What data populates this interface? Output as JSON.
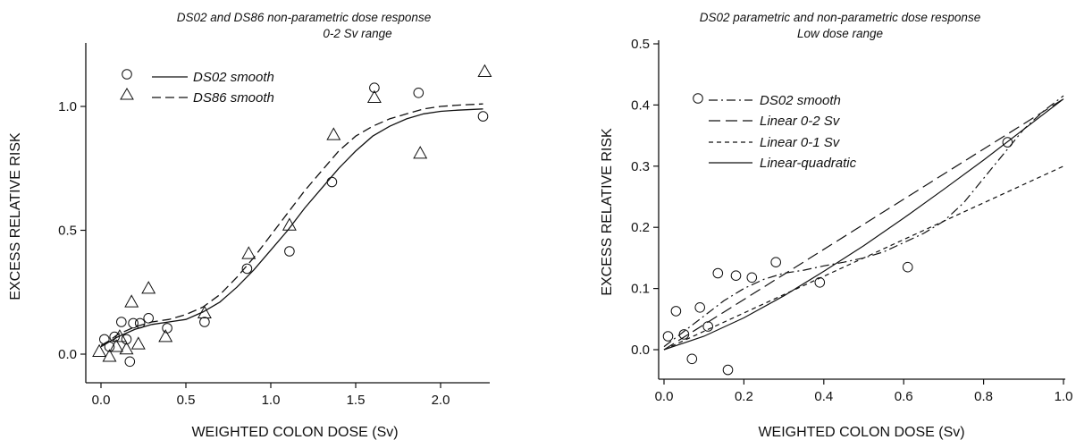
{
  "chart_data": [
    {
      "type": "scatter",
      "title": "DS02 and DS86 non-parametric dose response",
      "subtitle": "0-2 Sv range",
      "xlabel": "WEIGHTED COLON DOSE (Sv)",
      "ylabel": "EXCESS RELATIVE RISK",
      "xlim": [
        -0.1,
        2.3
      ],
      "ylim": [
        -0.1,
        1.25
      ],
      "x_ticks": [
        0.0,
        0.5,
        1.0,
        1.5,
        2.0
      ],
      "x_tick_labels": [
        "0.0",
        "0.5",
        "1.0",
        "1.5",
        "2.0"
      ],
      "y_ticks": [
        0.0,
        0.5,
        1.0
      ],
      "y_tick_labels": [
        "0.0",
        "0.5",
        "1.0"
      ],
      "grid": false,
      "legend_position": "top-left",
      "series": [
        {
          "name": "DS02 smooth",
          "marker": "circle",
          "line_style": "solid",
          "points": [
            [
              0.02,
              0.06
            ],
            [
              0.05,
              0.03
            ],
            [
              0.08,
              0.07
            ],
            [
              0.12,
              0.13
            ],
            [
              0.15,
              0.06
            ],
            [
              0.17,
              -0.03
            ],
            [
              0.19,
              0.125
            ],
            [
              0.23,
              0.125
            ],
            [
              0.28,
              0.145
            ],
            [
              0.39,
              0.105
            ],
            [
              0.61,
              0.13
            ],
            [
              0.86,
              0.345
            ],
            [
              1.11,
              0.415
            ],
            [
              1.36,
              0.695
            ],
            [
              1.61,
              1.075
            ],
            [
              1.87,
              1.055
            ],
            [
              2.25,
              0.96
            ]
          ],
          "smooth": [
            [
              0.0,
              0.03
            ],
            [
              0.05,
              0.05
            ],
            [
              0.1,
              0.07
            ],
            [
              0.2,
              0.1
            ],
            [
              0.3,
              0.12
            ],
            [
              0.4,
              0.13
            ],
            [
              0.5,
              0.14
            ],
            [
              0.6,
              0.17
            ],
            [
              0.7,
              0.21
            ],
            [
              0.8,
              0.27
            ],
            [
              0.9,
              0.34
            ],
            [
              1.0,
              0.42
            ],
            [
              1.1,
              0.5
            ],
            [
              1.2,
              0.59
            ],
            [
              1.3,
              0.67
            ],
            [
              1.4,
              0.75
            ],
            [
              1.5,
              0.82
            ],
            [
              1.6,
              0.88
            ],
            [
              1.7,
              0.92
            ],
            [
              1.8,
              0.95
            ],
            [
              1.9,
              0.97
            ],
            [
              2.0,
              0.98
            ],
            [
              2.1,
              0.985
            ],
            [
              2.25,
              0.99
            ]
          ]
        },
        {
          "name": "DS86 smooth",
          "marker": "triangle",
          "line_style": "dashed",
          "points": [
            [
              -0.01,
              0.01
            ],
            [
              0.05,
              -0.01
            ],
            [
              0.09,
              0.03
            ],
            [
              0.11,
              0.07
            ],
            [
              0.15,
              0.02
            ],
            [
              0.18,
              0.21
            ],
            [
              0.22,
              0.04
            ],
            [
              0.28,
              0.265
            ],
            [
              0.38,
              0.07
            ],
            [
              0.61,
              0.165
            ],
            [
              0.87,
              0.405
            ],
            [
              1.11,
              0.52
            ],
            [
              1.37,
              0.885
            ],
            [
              1.61,
              1.035
            ],
            [
              1.88,
              0.81
            ],
            [
              2.26,
              1.14
            ]
          ],
          "smooth": [
            [
              0.0,
              0.035
            ],
            [
              0.05,
              0.055
            ],
            [
              0.1,
              0.08
            ],
            [
              0.2,
              0.11
            ],
            [
              0.3,
              0.13
            ],
            [
              0.4,
              0.14
            ],
            [
              0.5,
              0.16
            ],
            [
              0.6,
              0.19
            ],
            [
              0.7,
              0.24
            ],
            [
              0.8,
              0.31
            ],
            [
              0.9,
              0.39
            ],
            [
              1.0,
              0.48
            ],
            [
              1.1,
              0.57
            ],
            [
              1.2,
              0.66
            ],
            [
              1.3,
              0.74
            ],
            [
              1.4,
              0.82
            ],
            [
              1.5,
              0.88
            ],
            [
              1.6,
              0.92
            ],
            [
              1.7,
              0.95
            ],
            [
              1.8,
              0.97
            ],
            [
              1.9,
              0.99
            ],
            [
              2.0,
              1.0
            ],
            [
              2.1,
              1.005
            ],
            [
              2.25,
              1.01
            ]
          ]
        }
      ]
    },
    {
      "type": "scatter",
      "title": "DS02 parametric and  non-parametric dose response",
      "subtitle": "Low dose range",
      "xlabel": "WEIGHTED COLON DOSE (Sv)",
      "ylabel": "EXCESS RELATIVE RISK",
      "xlim": [
        -0.01,
        1.0
      ],
      "ylim": [
        -0.05,
        0.5
      ],
      "x_ticks": [
        0.0,
        0.2,
        0.4,
        0.6,
        0.8,
        1.0
      ],
      "x_tick_labels": [
        "0.0",
        "0.2",
        "0.4",
        "0.6",
        "0.8",
        "1.0"
      ],
      "y_ticks": [
        0.0,
        0.1,
        0.2,
        0.3,
        0.4,
        0.5
      ],
      "y_tick_labels": [
        "0.0",
        "0.1",
        "0.2",
        "0.3",
        "0.4",
        "0.5"
      ],
      "grid": false,
      "legend_position": "top-left",
      "points": [
        [
          0.01,
          0.022
        ],
        [
          0.03,
          0.063
        ],
        [
          0.05,
          0.025
        ],
        [
          0.07,
          -0.015
        ],
        [
          0.09,
          0.069
        ],
        [
          0.11,
          0.038
        ],
        [
          0.135,
          0.125
        ],
        [
          0.16,
          -0.033
        ],
        [
          0.18,
          0.121
        ],
        [
          0.22,
          0.118
        ],
        [
          0.28,
          0.143
        ],
        [
          0.39,
          0.11
        ],
        [
          0.61,
          0.135
        ],
        [
          0.86,
          0.339
        ]
      ],
      "series": [
        {
          "name": "DS02 smooth",
          "line_style": "dash-dot",
          "marker": "circle",
          "values": [
            [
              0.0,
              0.005
            ],
            [
              0.05,
              0.03
            ],
            [
              0.1,
              0.055
            ],
            [
              0.15,
              0.08
            ],
            [
              0.2,
              0.1
            ],
            [
              0.25,
              0.115
            ],
            [
              0.3,
              0.125
            ],
            [
              0.35,
              0.13
            ],
            [
              0.4,
              0.137
            ],
            [
              0.45,
              0.143
            ],
            [
              0.5,
              0.15
            ],
            [
              0.55,
              0.16
            ],
            [
              0.6,
              0.175
            ],
            [
              0.65,
              0.19
            ],
            [
              0.7,
              0.21
            ],
            [
              0.75,
              0.24
            ],
            [
              0.8,
              0.28
            ],
            [
              0.85,
              0.32
            ],
            [
              0.9,
              0.36
            ],
            [
              0.95,
              0.39
            ],
            [
              1.0,
              0.415
            ]
          ]
        },
        {
          "name": "Linear 0-2 Sv",
          "line_style": "long-dash",
          "values": [
            [
              0.0,
              0.0
            ],
            [
              1.0,
              0.41
            ]
          ]
        },
        {
          "name": "Linear 0-1 Sv",
          "line_style": "short-dash",
          "values": [
            [
              0.0,
              0.0
            ],
            [
              1.0,
              0.3
            ]
          ]
        },
        {
          "name": "Linear-quadratic",
          "line_style": "solid",
          "values": [
            [
              0.0,
              0.0
            ],
            [
              0.1,
              0.022
            ],
            [
              0.2,
              0.052
            ],
            [
              0.3,
              0.088
            ],
            [
              0.4,
              0.128
            ],
            [
              0.5,
              0.17
            ],
            [
              0.6,
              0.215
            ],
            [
              0.7,
              0.262
            ],
            [
              0.8,
              0.31
            ],
            [
              0.9,
              0.36
            ],
            [
              1.0,
              0.41
            ]
          ]
        }
      ]
    }
  ]
}
